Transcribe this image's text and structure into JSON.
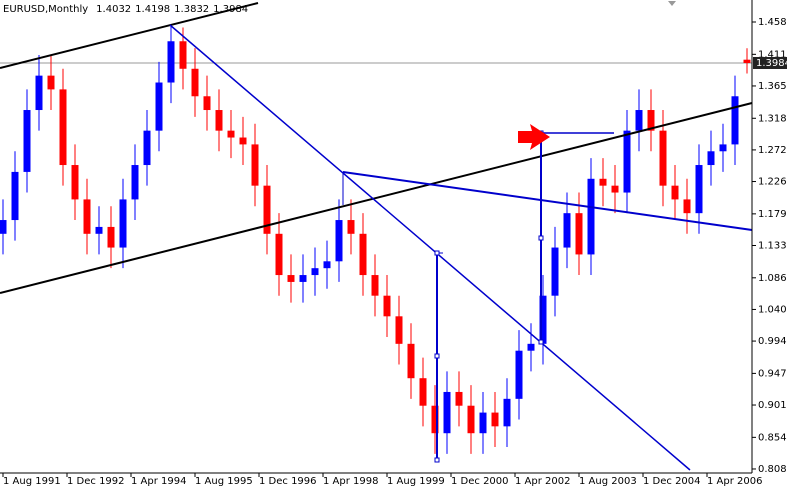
{
  "chart_data": {
    "type": "candlestick",
    "title": "EURUSD,Monthly",
    "x": [
      "1991-08-01",
      "1991-11-01",
      "1992-02-01",
      "1992-05-01",
      "1992-08-01",
      "1992-11-01",
      "1993-02-01",
      "1993-05-01",
      "1993-08-01",
      "1993-11-01",
      "1994-02-01",
      "1994-05-01",
      "1994-08-01",
      "1994-11-01",
      "1995-02-01",
      "1995-05-01",
      "1995-08-01",
      "1995-11-01",
      "1996-02-01",
      "1996-05-01",
      "1996-08-01",
      "1996-11-01",
      "1997-02-01",
      "1997-05-01",
      "1997-08-01",
      "1997-11-01",
      "1998-02-01",
      "1998-05-01",
      "1998-08-01",
      "1998-11-01",
      "1999-02-01",
      "1999-05-01",
      "1999-08-01",
      "1999-11-01",
      "2000-02-01",
      "2000-05-01",
      "2000-08-01",
      "2000-11-01",
      "2001-02-01",
      "2001-05-01",
      "2001-08-01",
      "2001-11-01",
      "2002-02-01",
      "2002-05-01",
      "2002-08-01",
      "2002-11-01",
      "2003-02-01",
      "2003-05-01",
      "2003-08-01",
      "2003-11-01",
      "2004-02-01",
      "2004-05-01",
      "2004-08-01",
      "2004-11-01",
      "2005-02-01",
      "2005-05-01",
      "2005-08-01",
      "2005-11-01",
      "2006-02-01",
      "2006-05-01",
      "2006-08-01",
      "2006-11-01",
      "2007-02-01"
    ],
    "open": [
      1.15,
      1.17,
      1.24,
      1.33,
      1.38,
      1.36,
      1.25,
      1.2,
      1.15,
      1.16,
      1.13,
      1.2,
      1.25,
      1.3,
      1.37,
      1.43,
      1.39,
      1.35,
      1.33,
      1.3,
      1.29,
      1.28,
      1.22,
      1.15,
      1.09,
      1.08,
      1.09,
      1.1,
      1.11,
      1.17,
      1.15,
      1.09,
      1.06,
      1.03,
      0.99,
      0.94,
      0.9,
      0.86,
      0.92,
      0.9,
      0.86,
      0.89,
      0.87,
      0.91,
      0.98,
      0.99,
      1.06,
      1.13,
      1.18,
      1.12,
      1.23,
      1.22,
      1.21,
      1.3,
      1.33,
      1.3,
      1.22,
      1.2,
      1.18,
      1.25,
      1.27,
      1.28,
      1.4032
    ],
    "high": [
      1.2,
      1.27,
      1.36,
      1.41,
      1.41,
      1.39,
      1.28,
      1.23,
      1.19,
      1.19,
      1.23,
      1.28,
      1.33,
      1.4,
      1.455,
      1.45,
      1.42,
      1.38,
      1.36,
      1.33,
      1.32,
      1.31,
      1.25,
      1.18,
      1.12,
      1.12,
      1.13,
      1.14,
      1.2,
      1.2,
      1.18,
      1.12,
      1.09,
      1.06,
      1.02,
      0.97,
      0.93,
      0.95,
      0.95,
      0.93,
      0.92,
      0.92,
      0.94,
      1.01,
      1.02,
      1.09,
      1.16,
      1.21,
      1.21,
      1.26,
      1.26,
      1.25,
      1.33,
      1.36,
      1.36,
      1.33,
      1.25,
      1.23,
      1.28,
      1.3,
      1.31,
      1.38,
      1.4198
    ],
    "low": [
      1.12,
      1.14,
      1.21,
      1.3,
      1.33,
      1.22,
      1.17,
      1.12,
      1.12,
      1.1,
      1.1,
      1.17,
      1.22,
      1.27,
      1.34,
      1.36,
      1.32,
      1.3,
      1.27,
      1.26,
      1.25,
      1.19,
      1.12,
      1.06,
      1.05,
      1.05,
      1.06,
      1.07,
      1.08,
      1.12,
      1.06,
      1.03,
      1.0,
      0.96,
      0.91,
      0.87,
      0.83,
      0.83,
      0.87,
      0.83,
      0.83,
      0.84,
      0.84,
      0.88,
      0.95,
      0.96,
      1.03,
      1.1,
      1.09,
      1.09,
      1.19,
      1.18,
      1.18,
      1.27,
      1.27,
      1.19,
      1.17,
      1.15,
      1.15,
      1.22,
      1.24,
      1.25,
      1.3832
    ],
    "close": [
      1.17,
      1.24,
      1.33,
      1.38,
      1.36,
      1.25,
      1.2,
      1.15,
      1.16,
      1.13,
      1.2,
      1.25,
      1.3,
      1.37,
      1.43,
      1.39,
      1.35,
      1.33,
      1.3,
      1.29,
      1.28,
      1.22,
      1.15,
      1.09,
      1.08,
      1.09,
      1.1,
      1.11,
      1.17,
      1.15,
      1.09,
      1.06,
      1.03,
      0.99,
      0.94,
      0.9,
      0.86,
      0.92,
      0.9,
      0.86,
      0.89,
      0.87,
      0.91,
      0.98,
      0.99,
      1.06,
      1.13,
      1.18,
      1.12,
      1.23,
      1.22,
      1.21,
      1.3,
      1.33,
      1.3,
      1.22,
      1.2,
      1.18,
      1.25,
      1.27,
      1.28,
      1.35,
      1.3984
    ],
    "up_color": "#0000ff",
    "down_color": "#ff0000",
    "xlim": [
      "1991-08-01",
      "2007-04-01"
    ],
    "xticks": [
      {
        "value": "1991-08-01",
        "label": "1 Aug 1991"
      },
      {
        "value": "1992-12-01",
        "label": "1 Dec 1992"
      },
      {
        "value": "1994-04-01",
        "label": "1 Apr 1994"
      },
      {
        "value": "1995-08-01",
        "label": "1 Aug 1995"
      },
      {
        "value": "1996-12-01",
        "label": "1 Dec 1996"
      },
      {
        "value": "1998-04-01",
        "label": "1 Apr 1998"
      },
      {
        "value": "1999-08-01",
        "label": "1 Aug 1999"
      },
      {
        "value": "2000-12-01",
        "label": "1 Dec 2000"
      },
      {
        "value": "2002-04-01",
        "label": "1 Apr 2002"
      },
      {
        "value": "2003-08-01",
        "label": "1 Aug 2003"
      },
      {
        "value": "2004-12-01",
        "label": "1 Dec 2004"
      },
      {
        "value": "2006-04-01",
        "label": "1 Apr 2006"
      }
    ],
    "ylim": [
      0.8036,
      1.49
    ],
    "yticks": [
      {
        "value": 1.458,
        "label": "1.4580"
      },
      {
        "value": 1.411,
        "label": "1.4110"
      },
      {
        "value": 1.365,
        "label": "1.3650"
      },
      {
        "value": 1.318,
        "label": "1.3180"
      },
      {
        "value": 1.272,
        "label": "1.2720"
      },
      {
        "value": 1.226,
        "label": "1.2260"
      },
      {
        "value": 1.179,
        "label": "1.1790"
      },
      {
        "value": 1.133,
        "label": "1.1330"
      },
      {
        "value": 1.086,
        "label": "1.0860"
      },
      {
        "value": 1.04,
        "label": "1.0400"
      },
      {
        "value": 0.994,
        "label": "0.9940"
      },
      {
        "value": 0.947,
        "label": "0.9470"
      },
      {
        "value": 0.901,
        "label": "0.9010"
      },
      {
        "value": 0.854,
        "label": "0.8540"
      },
      {
        "value": 0.808,
        "label": "0.8080"
      }
    ]
  }
}
